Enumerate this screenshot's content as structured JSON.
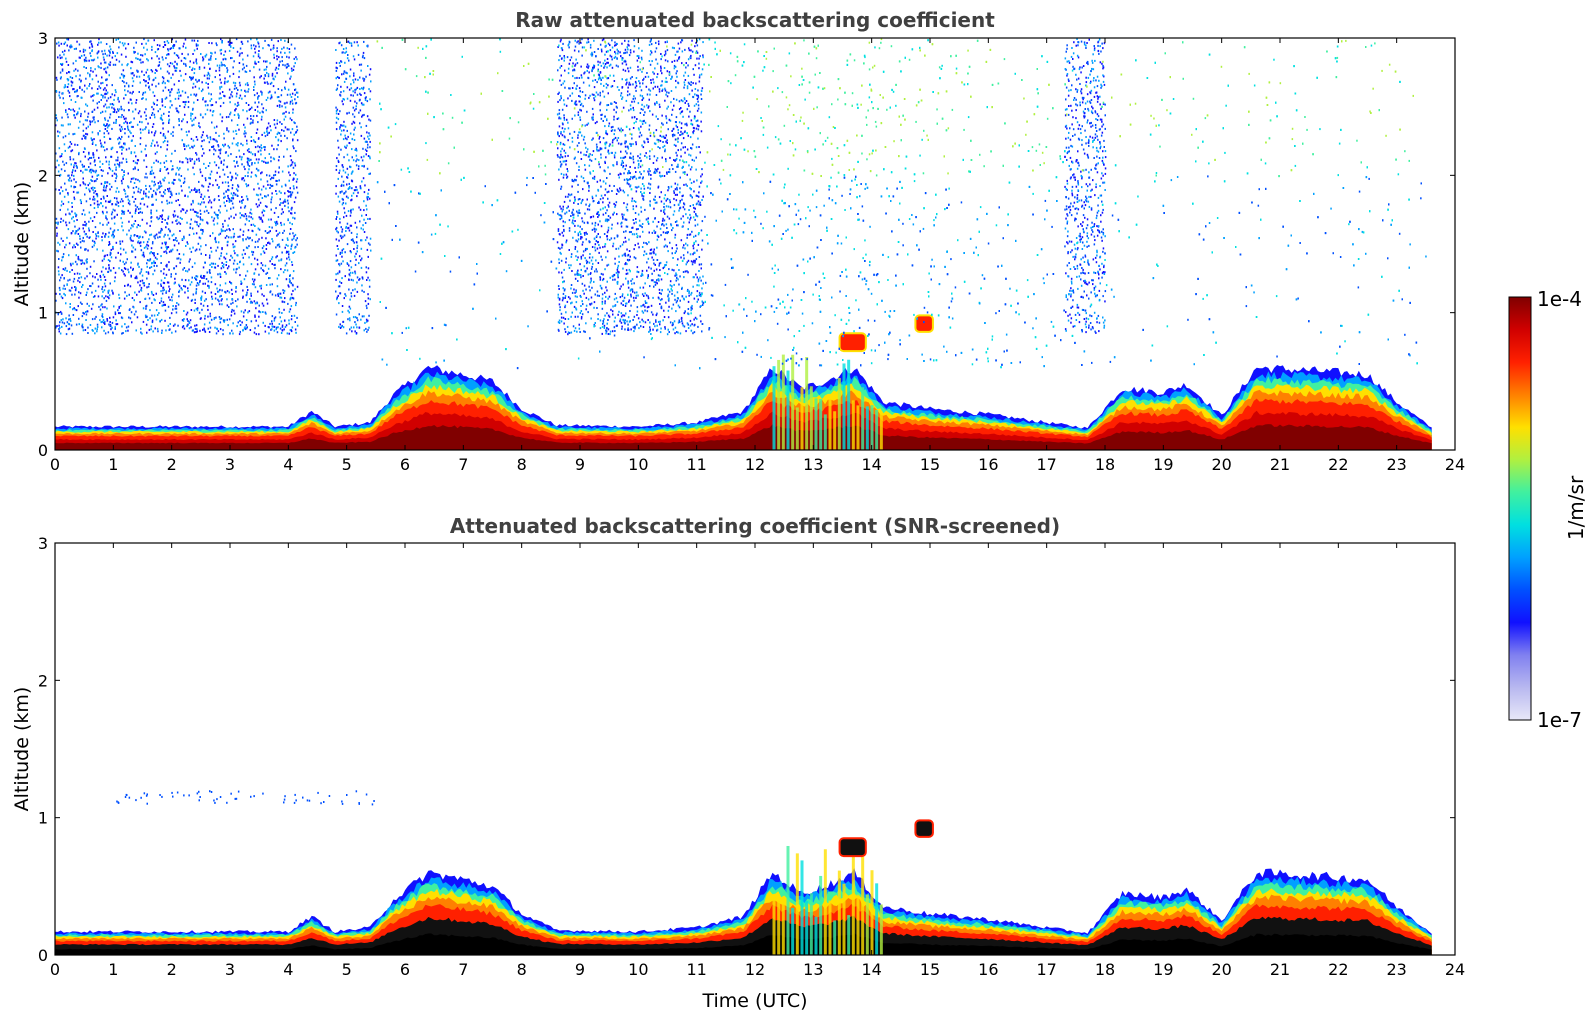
{
  "chart_data": [
    {
      "type": "heatmap",
      "title": "Raw attenuated backscattering coefficient",
      "xlabel": "",
      "ylabel": "Altitude (km)",
      "xlim": [
        0,
        24
      ],
      "ylim": [
        0,
        3
      ],
      "xticks": [
        "0",
        "1",
        "2",
        "3",
        "4",
        "5",
        "6",
        "7",
        "8",
        "9",
        "10",
        "11",
        "12",
        "13",
        "14",
        "15",
        "16",
        "17",
        "18",
        "19",
        "20",
        "21",
        "22",
        "23",
        "24"
      ],
      "yticks": [
        "0",
        "1",
        "2",
        "3"
      ],
      "noise_columns_utc": [
        [
          0,
          4.15
        ],
        [
          4.8,
          5.4
        ],
        [
          8.6,
          11.1
        ],
        [
          17.3,
          18.0
        ]
      ],
      "layer_top_km": [
        [
          0,
          0.17
        ],
        [
          4.0,
          0.17
        ],
        [
          4.4,
          0.28
        ],
        [
          4.8,
          0.17
        ],
        [
          5.4,
          0.2
        ],
        [
          5.8,
          0.4
        ],
        [
          6.4,
          0.6
        ],
        [
          7.0,
          0.55
        ],
        [
          7.5,
          0.5
        ],
        [
          8.0,
          0.3
        ],
        [
          8.6,
          0.18
        ],
        [
          10.0,
          0.17
        ],
        [
          11.0,
          0.2
        ],
        [
          11.8,
          0.28
        ],
        [
          12.3,
          0.6
        ],
        [
          12.8,
          0.45
        ],
        [
          13.2,
          0.5
        ],
        [
          13.7,
          0.6
        ],
        [
          14.2,
          0.35
        ],
        [
          15.0,
          0.3
        ],
        [
          16.0,
          0.26
        ],
        [
          17.0,
          0.2
        ],
        [
          17.7,
          0.16
        ],
        [
          18.3,
          0.45
        ],
        [
          19.0,
          0.42
        ],
        [
          19.4,
          0.48
        ],
        [
          20.0,
          0.25
        ],
        [
          20.6,
          0.6
        ],
        [
          21.5,
          0.58
        ],
        [
          22.5,
          0.55
        ],
        [
          23.0,
          0.35
        ],
        [
          23.6,
          0.16
        ]
      ],
      "cloud_patches": [
        {
          "t": [
            13.45,
            13.9
          ],
          "alt_km": [
            0.72,
            0.85
          ]
        },
        {
          "t": [
            14.75,
            15.05
          ],
          "alt_km": [
            0.86,
            0.98
          ]
        }
      ]
    },
    {
      "type": "heatmap",
      "title": "Attenuated backscattering coefficient (SNR-screened)",
      "xlabel": "Time (UTC)",
      "ylabel": "Altitude (km)",
      "xlim": [
        0,
        24
      ],
      "ylim": [
        0,
        3
      ],
      "xticks": [
        "0",
        "1",
        "2",
        "3",
        "4",
        "5",
        "6",
        "7",
        "8",
        "9",
        "10",
        "11",
        "12",
        "13",
        "14",
        "15",
        "16",
        "17",
        "18",
        "19",
        "20",
        "21",
        "22",
        "23",
        "24"
      ],
      "yticks": [
        "0",
        "1",
        "2",
        "3"
      ]
    }
  ],
  "colorbar": {
    "label": "1/m/sr",
    "max_label": "1e-4",
    "min_label": "1e-7",
    "colors": [
      "#e8e8f8",
      "#b8b8f0",
      "#8080f0",
      "#1010ff",
      "#0050ff",
      "#00a0ff",
      "#00e0e0",
      "#40f0a0",
      "#b0f040",
      "#ffe000",
      "#ff8000",
      "#ff2000",
      "#d00000",
      "#800000"
    ]
  }
}
